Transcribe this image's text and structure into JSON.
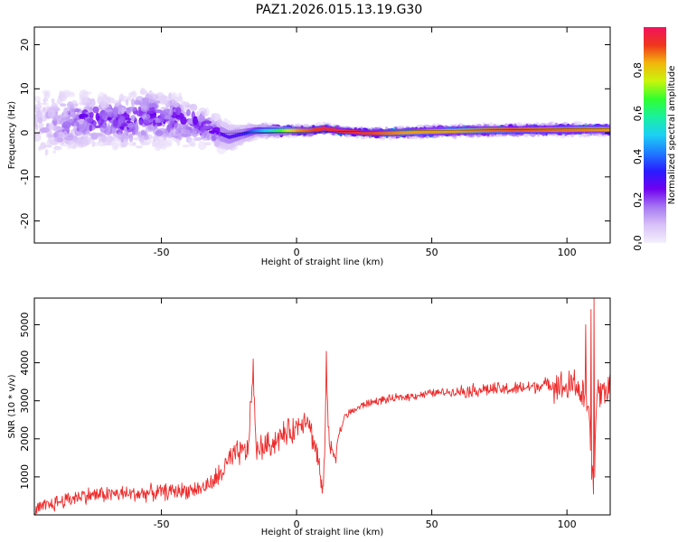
{
  "figure_title": "PAZ1.2026.015.13.19.G30",
  "colors": {
    "line": "#ee2b2b",
    "ridge": "#ee2b2b",
    "frame": "#000000",
    "colormap": [
      "#f4f0fc",
      "#d9c2f7",
      "#a678f2",
      "#7000f0",
      "#2a1cff",
      "#1f7cff",
      "#1dd0f5",
      "#19f0a0",
      "#30ff30",
      "#c9f50c",
      "#f2b60b",
      "#f0361c",
      "#f2125e"
    ]
  },
  "chart_data": [
    {
      "type": "heatmap",
      "title": "",
      "xlabel": "Height of straight line (km)",
      "ylabel": "Frequency (Hz)",
      "xlim": [
        -97,
        116
      ],
      "ylim": [
        -25,
        24
      ],
      "xticks": [
        -50,
        0,
        50,
        100
      ],
      "yticks": [
        -20,
        -10,
        0,
        10,
        20
      ],
      "colorbar": {
        "label": "Normalized spectral amplitude",
        "range": [
          0,
          1
        ],
        "ticks": [
          0.0,
          0.2,
          0.4,
          0.6,
          0.8
        ]
      },
      "dominant_ridge": {
        "description": "peak frequency trace vs height (km, Hz)",
        "x": [
          -95,
          -85,
          -75,
          -65,
          -55,
          -45,
          -35,
          -25,
          -15,
          -5,
          5,
          10,
          15,
          25,
          35,
          50,
          70,
          90,
          110,
          116
        ],
        "y": [
          1.5,
          2.5,
          3.0,
          2.5,
          3.5,
          3.0,
          1.5,
          -1.0,
          0.5,
          0.5,
          0.5,
          1.0,
          0.5,
          0.0,
          0.0,
          0.3,
          0.6,
          0.7,
          0.8,
          0.8
        ]
      },
      "spread": {
        "description": "frequency spread (Hz) of energy vs height (km)",
        "x": [
          -97,
          -85,
          -70,
          -55,
          -40,
          -30,
          -25,
          -15,
          0,
          20,
          40,
          60,
          80,
          100,
          116
        ],
        "y": [
          20,
          11,
          9,
          11,
          9,
          6,
          5,
          2.5,
          1.5,
          1.2,
          1.6,
          1.8,
          1.6,
          1.8,
          1.6
        ]
      },
      "intensity": {
        "description": "peak normalized amplitude vs height (km)",
        "x": [
          -97,
          -80,
          -60,
          -40,
          -30,
          -20,
          -10,
          0,
          10,
          20,
          40,
          60,
          80,
          100,
          116
        ],
        "y": [
          0.08,
          0.28,
          0.28,
          0.28,
          0.27,
          0.3,
          0.55,
          0.85,
          0.95,
          0.95,
          0.85,
          0.85,
          0.9,
          0.88,
          0.85
        ]
      }
    },
    {
      "type": "line",
      "title": "",
      "xlabel": "Height of straight line (km)",
      "ylabel": "SNR (10 * v/v)",
      "xlim": [
        -97,
        116
      ],
      "ylim": [
        0,
        5700
      ],
      "xticks": [
        -50,
        0,
        50,
        100
      ],
      "yticks": [
        1000,
        2000,
        3000,
        4000,
        5000
      ],
      "series": [
        {
          "name": "SNR",
          "x": [
            -97,
            -90,
            -80,
            -70,
            -60,
            -50,
            -40,
            -35,
            -30,
            -27,
            -25,
            -22,
            -20,
            -18,
            -16,
            -15,
            -14,
            -12,
            -10,
            -7,
            -5,
            -2,
            0,
            2,
            4,
            6,
            8,
            9,
            10,
            11,
            12,
            14,
            16,
            18,
            20,
            25,
            30,
            40,
            50,
            60,
            70,
            80,
            90,
            95,
            100,
            103,
            105,
            107,
            108,
            109,
            110,
            111,
            112,
            114,
            116
          ],
          "y": [
            100,
            300,
            500,
            550,
            550,
            600,
            650,
            700,
            900,
            1200,
            1400,
            1600,
            1650,
            1700,
            3800,
            1600,
            1750,
            1800,
            1850,
            2000,
            2100,
            2200,
            2300,
            2500,
            2600,
            2000,
            1500,
            800,
            500,
            4000,
            1800,
            1600,
            2200,
            2600,
            2700,
            2900,
            3000,
            3100,
            3200,
            3250,
            3300,
            3300,
            3400,
            3450,
            3300,
            3500,
            3200,
            3000,
            2600,
            1500,
            400,
            3300,
            3200,
            3300,
            3300
          ]
        }
      ],
      "spikes": {
        "x": [
          -16,
          11,
          107,
          109,
          110
        ],
        "y": [
          4100,
          4300,
          5000,
          5400,
          5700
        ]
      }
    }
  ]
}
